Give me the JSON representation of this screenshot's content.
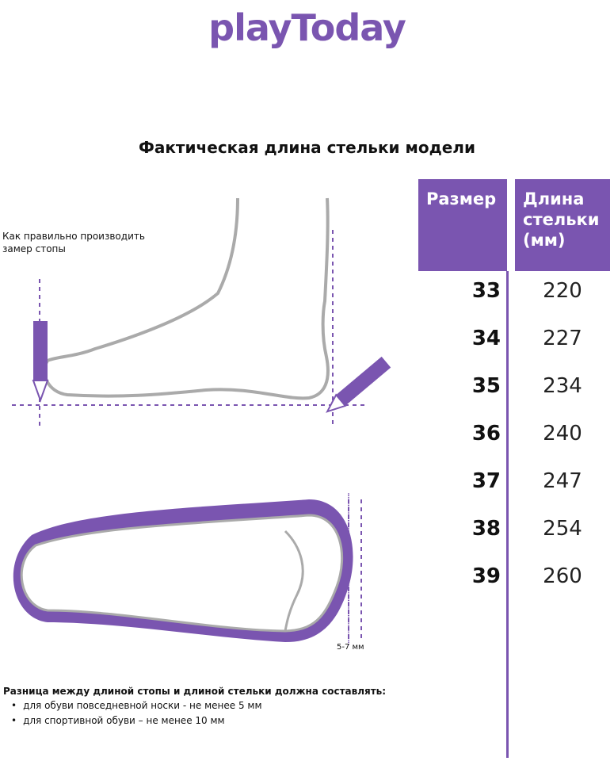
{
  "logo": "playToday",
  "title": "Фактическая длина стельки модели",
  "table": {
    "header_size": "Размер",
    "header_length": "Длина стельки (мм)",
    "rows": [
      {
        "size": "33",
        "length": "220"
      },
      {
        "size": "34",
        "length": "227"
      },
      {
        "size": "35",
        "length": "234"
      },
      {
        "size": "36",
        "length": "240"
      },
      {
        "size": "37",
        "length": "247"
      },
      {
        "size": "38",
        "length": "254"
      },
      {
        "size": "39",
        "length": "260"
      }
    ]
  },
  "instruction": "Как правильно производить замер стопы",
  "gap_label": "5-7 мм",
  "note": {
    "heading": "Разница между длиной стопы и длиной стельки должна составлять:",
    "items": [
      "для обуви повседневной носки -  не менее 5 мм",
      "для спортивной обуви – не менее 10 мм"
    ]
  },
  "colors": {
    "accent": "#7a55b0"
  }
}
